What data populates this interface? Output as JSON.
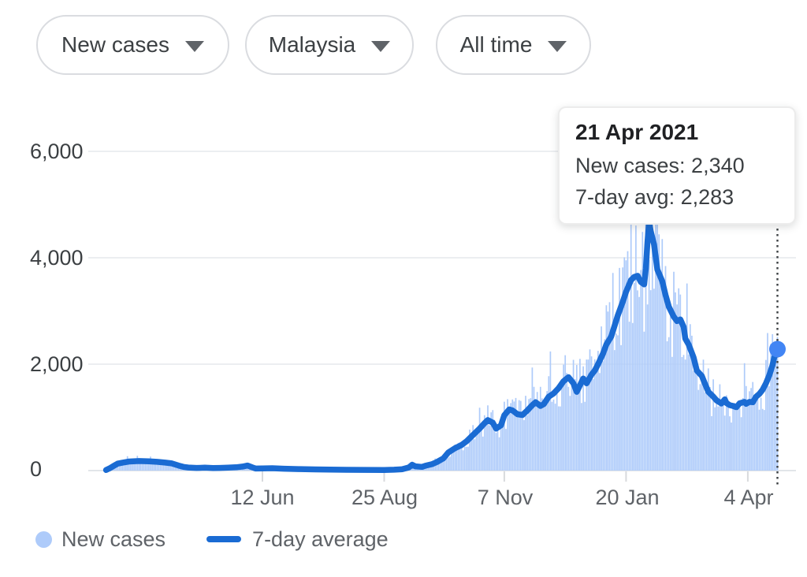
{
  "filters": [
    {
      "label": "New cases"
    },
    {
      "label": "Malaysia"
    },
    {
      "label": "All time"
    }
  ],
  "tooltip": {
    "title": "21 Apr 2021",
    "rows": [
      {
        "text": "New cases: 2,340"
      },
      {
        "text": "7-day avg: 2,283"
      }
    ]
  },
  "legend": [
    {
      "label": "New cases",
      "swatch": "dot",
      "color": "#aecbfa"
    },
    {
      "label": "7-day average",
      "swatch": "line",
      "color": "#1a6bd3"
    }
  ],
  "chart_data": {
    "type": "bar+line",
    "y_tick_labels": [
      "6,000",
      "4,000",
      "2,000",
      "0"
    ],
    "y_tick_values": [
      6000,
      4000,
      2000,
      0
    ],
    "ylim": [
      0,
      6600
    ],
    "x_tick_labels": [
      "12 Jun",
      "25 Aug",
      "7 Nov",
      "20 Jan",
      "4 Apr"
    ],
    "x_tick_days": [
      95,
      169,
      242,
      316,
      390
    ],
    "x_unit": "days since series start (9 Mar 2020)",
    "cursor_day": 408,
    "grid": true,
    "legend_position": "bottom",
    "series": [
      {
        "name": "New cases",
        "type": "bar",
        "color": "#aecbfa",
        "render": "daily bars derived from 7-day average curve with pseudo-random daily noise",
        "noise_seed": 7,
        "noise_range": [
          0.72,
          1.3
        ],
        "max_value": 5650
      },
      {
        "name": "7-day average",
        "type": "line",
        "color": "#1a6bd3",
        "points": [
          [
            0,
            10
          ],
          [
            2,
            40
          ],
          [
            5,
            95
          ],
          [
            7,
            130
          ],
          [
            10,
            150
          ],
          [
            14,
            170
          ],
          [
            20,
            180
          ],
          [
            26,
            175
          ],
          [
            31,
            165
          ],
          [
            36,
            150
          ],
          [
            40,
            135
          ],
          [
            44,
            95
          ],
          [
            47,
            70
          ],
          [
            50,
            58
          ],
          [
            55,
            50
          ],
          [
            60,
            55
          ],
          [
            65,
            48
          ],
          [
            69,
            50
          ],
          [
            74,
            55
          ],
          [
            79,
            62
          ],
          [
            83,
            75
          ],
          [
            86,
            95
          ],
          [
            89,
            60
          ],
          [
            91,
            38
          ],
          [
            95,
            42
          ],
          [
            101,
            44
          ],
          [
            108,
            35
          ],
          [
            117,
            28
          ],
          [
            127,
            22
          ],
          [
            136,
            18
          ],
          [
            146,
            15
          ],
          [
            156,
            13
          ],
          [
            169,
            12
          ],
          [
            175,
            16
          ],
          [
            180,
            25
          ],
          [
            184,
            60
          ],
          [
            186,
            110
          ],
          [
            188,
            80
          ],
          [
            192,
            70
          ],
          [
            194,
            90
          ],
          [
            198,
            120
          ],
          [
            201,
            160
          ],
          [
            205,
            230
          ],
          [
            208,
            340
          ],
          [
            212,
            420
          ],
          [
            216,
            480
          ],
          [
            219,
            550
          ],
          [
            223,
            670
          ],
          [
            227,
            790
          ],
          [
            230,
            890
          ],
          [
            232,
            950
          ],
          [
            235,
            900
          ],
          [
            237,
            790
          ],
          [
            240,
            850
          ],
          [
            242,
            1040
          ],
          [
            245,
            1150
          ],
          [
            247,
            1130
          ],
          [
            250,
            1060
          ],
          [
            253,
            1045
          ],
          [
            256,
            1130
          ],
          [
            259,
            1230
          ],
          [
            261,
            1285
          ],
          [
            264,
            1215
          ],
          [
            266,
            1250
          ],
          [
            269,
            1390
          ],
          [
            272,
            1450
          ],
          [
            275,
            1550
          ],
          [
            278,
            1680
          ],
          [
            281,
            1755
          ],
          [
            284,
            1640
          ],
          [
            286,
            1480
          ],
          [
            290,
            1730
          ],
          [
            292,
            1640
          ],
          [
            295,
            1805
          ],
          [
            297,
            1880
          ],
          [
            299,
            2000
          ],
          [
            302,
            2200
          ],
          [
            304,
            2370
          ],
          [
            307,
            2520
          ],
          [
            309,
            2720
          ],
          [
            311,
            2920
          ],
          [
            314,
            3170
          ],
          [
            316,
            3360
          ],
          [
            319,
            3580
          ],
          [
            321,
            3640
          ],
          [
            323,
            3660
          ],
          [
            325,
            3545
          ],
          [
            327,
            3500
          ],
          [
            328,
            3800
          ],
          [
            329,
            4300
          ],
          [
            330,
            4670
          ],
          [
            331,
            4500
          ],
          [
            333,
            4250
          ],
          [
            335,
            3780
          ],
          [
            338,
            3560
          ],
          [
            340,
            3300
          ],
          [
            342,
            3080
          ],
          [
            345,
            2890
          ],
          [
            347,
            2810
          ],
          [
            349,
            2840
          ],
          [
            351,
            2700
          ],
          [
            352,
            2480
          ],
          [
            354,
            2370
          ],
          [
            357,
            2130
          ],
          [
            359,
            1880
          ],
          [
            362,
            1780
          ],
          [
            364,
            1630
          ],
          [
            366,
            1480
          ],
          [
            369,
            1390
          ],
          [
            371,
            1320
          ],
          [
            374,
            1260
          ],
          [
            376,
            1340
          ],
          [
            377,
            1270
          ],
          [
            379,
            1230
          ],
          [
            381,
            1215
          ],
          [
            383,
            1190
          ],
          [
            385,
            1265
          ],
          [
            388,
            1290
          ],
          [
            389,
            1255
          ],
          [
            391,
            1290
          ],
          [
            393,
            1285
          ],
          [
            395,
            1390
          ],
          [
            397,
            1440
          ],
          [
            399,
            1520
          ],
          [
            401,
            1640
          ],
          [
            403,
            1790
          ],
          [
            405,
            1980
          ],
          [
            406,
            2120
          ],
          [
            408,
            2283
          ]
        ]
      }
    ],
    "highlight": {
      "date": "21 Apr 2021",
      "new_cases": 2340,
      "seven_day_avg": 2283,
      "marker_color": "#4285f4"
    }
  }
}
